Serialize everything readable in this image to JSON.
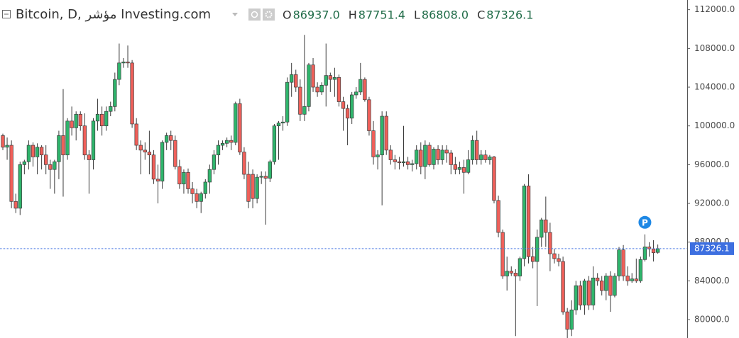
{
  "chart_data": {
    "type": "candlestick",
    "title": "Bitcoin, D, مؤشر Investing.com",
    "ohlc_legend": [
      {
        "name": "O",
        "value": 86937,
        "label": "86937.0"
      },
      {
        "name": "H",
        "value": 87751.4,
        "label": "87751.4"
      },
      {
        "name": "L",
        "value": 86808,
        "label": "86808.0"
      },
      {
        "name": "C",
        "value": 87326.1,
        "label": "87326.1"
      }
    ],
    "last_price": 87326.1,
    "marker": "P",
    "up_color": "#2fb56c",
    "down_color": "#f0605a",
    "outline_color": "#3a3a3a",
    "price_line_color": "#3d6fe0",
    "ylim": [
      78100,
      113000
    ],
    "yticks": [
      {
        "value": 80000,
        "label": "80000.0"
      },
      {
        "value": 84000,
        "label": "84000.0"
      },
      {
        "value": 88000,
        "label": "88000.0"
      },
      {
        "value": 92000,
        "label": "92000.0"
      },
      {
        "value": 96000,
        "label": "96000.0"
      },
      {
        "value": 100000,
        "label": "100000.0"
      },
      {
        "value": 104000,
        "label": "104000.0"
      },
      {
        "value": 108000,
        "label": "108000.0"
      },
      {
        "value": 112000,
        "label": "112000.0"
      }
    ],
    "candles": [
      [
        99000,
        99200,
        97500,
        97800
      ],
      [
        97800,
        98800,
        96500,
        98000
      ],
      [
        98000,
        98500,
        91500,
        92200
      ],
      [
        92200,
        93000,
        91000,
        91500
      ],
      [
        91500,
        96300,
        90800,
        96000
      ],
      [
        96000,
        96500,
        95000,
        96300
      ],
      [
        96300,
        98500,
        95500,
        98000
      ],
      [
        98000,
        98300,
        95800,
        96800
      ],
      [
        96800,
        98200,
        95000,
        97800
      ],
      [
        97800,
        98000,
        95500,
        97000
      ],
      [
        97000,
        98000,
        95000,
        96000
      ],
      [
        96000,
        96500,
        93500,
        95500
      ],
      [
        95500,
        96500,
        93000,
        96300
      ],
      [
        96300,
        99500,
        94500,
        99000
      ],
      [
        99000,
        103800,
        92700,
        97000
      ],
      [
        97000,
        100800,
        96500,
        100500
      ],
      [
        100500,
        102000,
        99000,
        99800
      ],
      [
        99800,
        101500,
        98500,
        101200
      ],
      [
        101200,
        101500,
        99500,
        100000
      ],
      [
        100000,
        101300,
        96500,
        97000
      ],
      [
        97000,
        97500,
        93000,
        96500
      ],
      [
        96500,
        100800,
        95500,
        100500
      ],
      [
        100500,
        102800,
        99500,
        101200
      ],
      [
        101200,
        102000,
        99000,
        100000
      ],
      [
        100000,
        102000,
        99500,
        101500
      ],
      [
        101500,
        102500,
        101000,
        102000
      ],
      [
        102000,
        105500,
        101500,
        104800
      ],
      [
        104800,
        108500,
        104200,
        106500
      ],
      [
        106500,
        107000,
        106000,
        106600
      ],
      [
        106600,
        108300,
        106000,
        106500
      ],
      [
        106500,
        106800,
        99800,
        100200
      ],
      [
        100200,
        100800,
        97500,
        98000
      ],
      [
        98000,
        98500,
        95000,
        97500
      ],
      [
        97500,
        98300,
        96500,
        97300
      ],
      [
        97300,
        99500,
        95000,
        97000
      ],
      [
        97000,
        97500,
        94000,
        94500
      ],
      [
        94500,
        96000,
        92000,
        94300
      ],
      [
        94300,
        98500,
        93500,
        98300
      ],
      [
        98300,
        99300,
        97500,
        99000
      ],
      [
        99000,
        99500,
        97500,
        98500
      ],
      [
        98500,
        99000,
        95500,
        95800
      ],
      [
        95800,
        96500,
        93500,
        94000
      ],
      [
        94000,
        95500,
        93000,
        95200
      ],
      [
        95200,
        95600,
        93000,
        93500
      ],
      [
        93500,
        94200,
        92000,
        93000
      ],
      [
        93000,
        93500,
        91500,
        92200
      ],
      [
        92200,
        93200,
        91000,
        93000
      ],
      [
        93000,
        94500,
        92500,
        94200
      ],
      [
        94200,
        96000,
        93000,
        95500
      ],
      [
        95500,
        97500,
        95000,
        97000
      ],
      [
        97000,
        98500,
        96000,
        98000
      ],
      [
        98000,
        98500,
        97500,
        98200
      ],
      [
        98200,
        98800,
        97800,
        98500
      ],
      [
        98500,
        99000,
        97500,
        98300
      ],
      [
        98300,
        102500,
        98000,
        102300
      ],
      [
        102300,
        102800,
        97000,
        97300
      ],
      [
        97300,
        97800,
        94500,
        95000
      ],
      [
        95000,
        96300,
        91500,
        92200
      ],
      [
        95000,
        95500,
        91500,
        92500
      ],
      [
        92500,
        95000,
        92000,
        94700
      ],
      [
        94700,
        95300,
        94000,
        94800
      ],
      [
        94800,
        95300,
        89800,
        94600
      ],
      [
        94600,
        96500,
        94200,
        96300
      ],
      [
        96300,
        100200,
        96000,
        100000
      ],
      [
        100000,
        100500,
        96500,
        100300
      ],
      [
        100300,
        101000,
        99500,
        100400
      ],
      [
        100400,
        105000,
        100000,
        104500
      ],
      [
        104500,
        106500,
        103000,
        105300
      ],
      [
        105300,
        105800,
        103500,
        104000
      ],
      [
        104000,
        104800,
        100500,
        101200
      ],
      [
        101200,
        109400,
        100500,
        102000
      ],
      [
        102000,
        106500,
        101500,
        106300
      ],
      [
        106300,
        107000,
        103500,
        104000
      ],
      [
        104000,
        104500,
        103000,
        103500
      ],
      [
        103500,
        104500,
        103200,
        104200
      ],
      [
        104200,
        108500,
        102000,
        105200
      ],
      [
        105200,
        105500,
        103500,
        104800
      ],
      [
        104800,
        106000,
        103000,
        105000
      ],
      [
        105000,
        105300,
        102000,
        102500
      ],
      [
        102500,
        103000,
        99500,
        101800
      ],
      [
        101800,
        102200,
        98000,
        100800
      ],
      [
        100800,
        103500,
        100200,
        103200
      ],
      [
        103200,
        104000,
        102800,
        103500
      ],
      [
        103500,
        106500,
        103200,
        104800
      ],
      [
        104800,
        105000,
        102500,
        102700
      ],
      [
        102700,
        103000,
        99000,
        99500
      ],
      [
        99500,
        100500,
        96000,
        96800
      ],
      [
        96800,
        97500,
        95500,
        97000
      ],
      [
        97000,
        101500,
        91800,
        101000
      ],
      [
        101000,
        101500,
        97000,
        97500
      ],
      [
        97500,
        98000,
        96000,
        96500
      ],
      [
        96500,
        97000,
        95500,
        96300
      ],
      [
        96300,
        96800,
        95500,
        96200
      ],
      [
        96200,
        100000,
        95800,
        96300
      ],
      [
        96300,
        96800,
        95500,
        96000
      ],
      [
        96000,
        96500,
        95300,
        96100
      ],
      [
        96100,
        98000,
        95500,
        97500
      ],
      [
        97500,
        98300,
        95000,
        95800
      ],
      [
        95800,
        98500,
        94500,
        98000
      ],
      [
        98000,
        98300,
        95800,
        96000
      ],
      [
        96000,
        97800,
        95500,
        97600
      ],
      [
        97600,
        98000,
        96000,
        96500
      ],
      [
        96500,
        98000,
        96000,
        97500
      ],
      [
        97500,
        98000,
        96200,
        97200
      ],
      [
        97200,
        97500,
        95000,
        96000
      ],
      [
        96000,
        96800,
        95000,
        95500
      ],
      [
        95500,
        96300,
        95000,
        95700
      ],
      [
        95700,
        96500,
        93000,
        95200
      ],
      [
        95200,
        97500,
        95000,
        96500
      ],
      [
        96500,
        99000,
        96000,
        98500
      ],
      [
        98500,
        99500,
        96000,
        96500
      ],
      [
        96500,
        97500,
        96000,
        97000
      ],
      [
        97000,
        97500,
        96200,
        96500
      ],
      [
        96500,
        97000,
        96000,
        96800
      ],
      [
        96800,
        96900,
        92000,
        92300
      ],
      [
        92300,
        92800,
        88500,
        89000
      ],
      [
        89000,
        89300,
        84200,
        84500
      ],
      [
        84500,
        86500,
        83000,
        85000
      ],
      [
        85000,
        85500,
        84500,
        84800
      ],
      [
        84800,
        85200,
        78300,
        84500
      ],
      [
        84500,
        86500,
        84000,
        86300
      ],
      [
        86300,
        94000,
        85500,
        93800
      ],
      [
        93800,
        95000,
        85800,
        86500
      ],
      [
        86500,
        87500,
        85300,
        86000
      ],
      [
        86000,
        89300,
        81400,
        88500
      ],
      [
        88500,
        90500,
        87500,
        90300
      ],
      [
        90300,
        92700,
        87500,
        89000
      ],
      [
        89000,
        90000,
        85000,
        86800
      ],
      [
        86800,
        87300,
        85800,
        86300
      ],
      [
        86300,
        86800,
        85500,
        86000
      ],
      [
        86000,
        86500,
        80500,
        80800
      ],
      [
        80800,
        81200,
        78000,
        79000
      ],
      [
        79000,
        82000,
        78300,
        81000
      ],
      [
        81000,
        84000,
        80500,
        83500
      ],
      [
        83500,
        84000,
        81000,
        81500
      ],
      [
        81500,
        84200,
        80500,
        84000
      ],
      [
        84000,
        84500,
        81000,
        81500
      ],
      [
        81500,
        85500,
        81000,
        84300
      ],
      [
        84300,
        84800,
        83500,
        84000
      ],
      [
        84000,
        84500,
        82500,
        83000
      ],
      [
        83000,
        84800,
        82000,
        84500
      ],
      [
        84500,
        85000,
        80800,
        82500
      ],
      [
        82500,
        84800,
        82300,
        84500
      ],
      [
        84500,
        87500,
        84000,
        87200
      ],
      [
        87200,
        87700,
        84000,
        84500
      ],
      [
        84500,
        85500,
        83500,
        84000
      ],
      [
        84000,
        84800,
        83800,
        84200
      ],
      [
        84200,
        86300,
        83800,
        84000
      ],
      [
        84000,
        86500,
        83800,
        86200
      ],
      [
        86200,
        88800,
        86000,
        87500
      ],
      [
        87500,
        88000,
        86500,
        87300
      ],
      [
        87300,
        88200,
        86000,
        86900
      ],
      [
        86937,
        87751.4,
        86808,
        87326.1
      ]
    ]
  }
}
